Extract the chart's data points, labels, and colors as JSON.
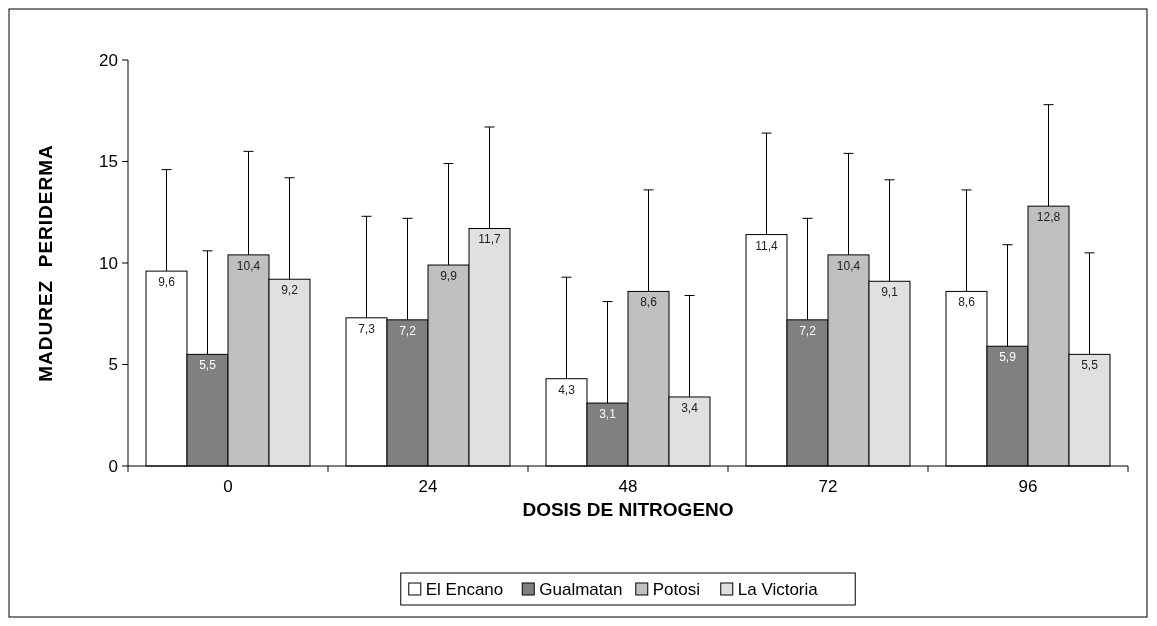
{
  "chart_data": {
    "type": "bar",
    "xlabel": "DOSIS DE NITROGENO",
    "ylabel": "MADUREZ  PERIDERMA",
    "categories": [
      "0",
      "24",
      "48",
      "72",
      "96"
    ],
    "ylim": [
      0,
      20
    ],
    "yticks": [
      0,
      5,
      10,
      15,
      20
    ],
    "grid": false,
    "legend": "bottom",
    "series": [
      {
        "name": "El Encano",
        "color": "#ffffff",
        "values": [
          9.6,
          7.3,
          4.3,
          11.4,
          8.6
        ],
        "value_labels": [
          "9,6",
          "7,3",
          "4,3",
          "11,4",
          "8,6"
        ],
        "errors": [
          [
            9.6,
            14.6
          ],
          [
            7.3,
            12.3
          ],
          [
            4.3,
            9.3
          ],
          [
            11.4,
            16.4
          ],
          [
            8.6,
            13.6
          ]
        ]
      },
      {
        "name": "Gualmatan",
        "color": "#808080",
        "values": [
          5.5,
          7.2,
          3.1,
          7.2,
          5.9
        ],
        "value_labels": [
          "5,5",
          "7,2",
          "3,1",
          "7,2",
          "5,9"
        ],
        "errors": [
          [
            5.5,
            10.6
          ],
          [
            7.2,
            12.2
          ],
          [
            3.1,
            8.1
          ],
          [
            7.2,
            12.2
          ],
          [
            5.9,
            10.9
          ]
        ]
      },
      {
        "name": "Potosi",
        "color": "#c0c0c0",
        "values": [
          10.4,
          9.9,
          8.6,
          10.4,
          12.8
        ],
        "value_labels": [
          "10,4",
          "9,9",
          "8,6",
          "10,4",
          "12,8"
        ],
        "errors": [
          [
            10.4,
            15.5
          ],
          [
            9.9,
            14.9
          ],
          [
            8.6,
            13.6
          ],
          [
            10.4,
            15.4
          ],
          [
            12.8,
            17.8
          ]
        ]
      },
      {
        "name": "La Victoria",
        "color": "#e0e0e0",
        "values": [
          9.2,
          11.7,
          3.4,
          9.1,
          5.5
        ],
        "value_labels": [
          "9,2",
          "11,7",
          "3,4",
          "9,1",
          "5,5"
        ],
        "errors": [
          [
            9.2,
            14.2
          ],
          [
            11.7,
            16.7
          ],
          [
            3.4,
            8.4
          ],
          [
            9.1,
            14.1
          ],
          [
            5.5,
            10.5
          ]
        ]
      }
    ]
  }
}
